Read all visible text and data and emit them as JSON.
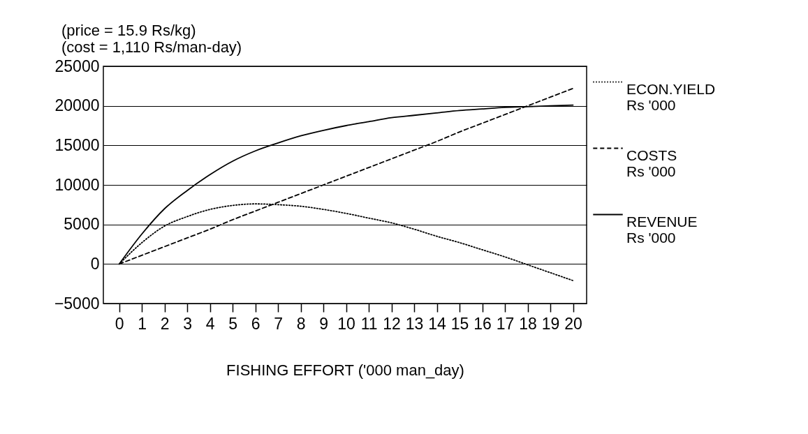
{
  "chart_data": {
    "type": "line",
    "title": "(price =  15.9 Rs/kg)",
    "subtitle": "(cost  = 1,110 Rs/man-day)",
    "xlabel": "FISHING EFFORT ('000 man_day)",
    "x": [
      0,
      1,
      2,
      3,
      4,
      5,
      6,
      7,
      8,
      9,
      10,
      11,
      12,
      13,
      14,
      15,
      16,
      17,
      18,
      19,
      20
    ],
    "xlim": [
      -0.7,
      20.6
    ],
    "xticks": [
      0,
      1,
      2,
      3,
      4,
      5,
      6,
      7,
      8,
      9,
      10,
      11,
      12,
      13,
      14,
      15,
      16,
      17,
      18,
      19,
      20
    ],
    "ylim": [
      -5000,
      25000
    ],
    "yticks": [
      -5000,
      0,
      5000,
      10000,
      15000,
      20000,
      25000
    ],
    "grid": "y",
    "legend": "right",
    "series": [
      {
        "name": "ECON.YIELD Rs '000",
        "color": "#000000",
        "line_style": "dotted",
        "values": [
          0,
          2700,
          4800,
          6000,
          6900,
          7400,
          7600,
          7500,
          7300,
          6900,
          6400,
          5800,
          5200,
          4400,
          3500,
          2700,
          1800,
          900,
          -100,
          -1100,
          -2100
        ]
      },
      {
        "name": "COSTS Rs '000",
        "color": "#000000",
        "line_style": "dashed",
        "values": [
          0,
          1100,
          2200,
          3300,
          4400,
          5600,
          6700,
          7800,
          8900,
          10000,
          11100,
          12200,
          13300,
          14400,
          15500,
          16700,
          17800,
          18900,
          20000,
          21100,
          22200
        ]
      },
      {
        "name": "REVENUE Rs '000",
        "color": "#000000",
        "line_style": "solid",
        "values": [
          0,
          3800,
          7000,
          9300,
          11300,
          13000,
          14300,
          15300,
          16200,
          16900,
          17500,
          18000,
          18500,
          18800,
          19100,
          19400,
          19600,
          19800,
          19900,
          20000,
          20100
        ]
      }
    ]
  }
}
